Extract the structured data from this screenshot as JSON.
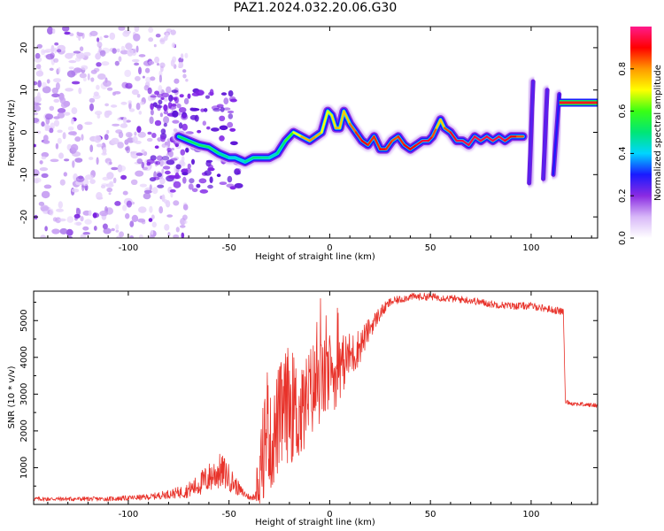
{
  "title": "PAZ1.2024.032.20.06.G30",
  "chart_data": [
    {
      "type": "heatmap",
      "name": "spectrogram",
      "xlabel": "Height of straight line (km)",
      "ylabel": "Frequency (Hz)",
      "xlim": [
        -147,
        133
      ],
      "ylim": [
        -25,
        25
      ],
      "xticks": [
        -100,
        -50,
        0,
        50,
        100
      ],
      "yticks": [
        -20,
        -10,
        0,
        10,
        20
      ],
      "colorbar": {
        "label": "Normalized spectral amplitude",
        "range": [
          0,
          1
        ],
        "ticks": [
          0.0,
          0.2,
          0.4,
          0.6,
          0.8
        ],
        "colormap": [
          "#ffffff",
          "#d8b8f8",
          "#8a2be2",
          "#1a1aff",
          "#00d5ff",
          "#00e676",
          "#39ff14",
          "#ffff00",
          "#ff9900",
          "#ff0000",
          "#ff1a8c"
        ]
      },
      "scatter_region": {
        "x": [
          -147,
          -75
        ],
        "y": [
          -25,
          25
        ],
        "amplitude": 0.1
      },
      "trace": {
        "x": [
          -75,
          -70,
          -65,
          -60,
          -55,
          -50,
          -47,
          -42,
          -38,
          -34,
          -30,
          -26,
          -22,
          -18,
          -14,
          -10,
          -7,
          -4,
          -1,
          1,
          3,
          5,
          7,
          10,
          13,
          16,
          19,
          22,
          25,
          28,
          31,
          34,
          37,
          40,
          43,
          46,
          49,
          51,
          53,
          55,
          57,
          60,
          63,
          66,
          69,
          72,
          75,
          78,
          81,
          84,
          87,
          90,
          93,
          96
        ],
        "y": [
          -1,
          -2,
          -3,
          -3.5,
          -5,
          -6,
          -6,
          -7,
          -6,
          -6,
          -6,
          -5,
          -2,
          0,
          -1,
          -2,
          -1,
          0,
          5,
          4,
          1,
          1,
          5,
          2,
          0,
          -2,
          -3,
          -1,
          -4,
          -4,
          -2,
          -1,
          -3,
          -4,
          -3,
          -2,
          -2,
          -1,
          1,
          3,
          1,
          0,
          -2,
          -2,
          -3,
          -1,
          -2,
          -1,
          -2,
          -1,
          -2,
          -1,
          -1,
          -1
        ],
        "amplitude": [
          0.5,
          0.55,
          0.5,
          0.55,
          0.5,
          0.45,
          0.4,
          0.45,
          0.5,
          0.5,
          0.45,
          0.45,
          0.55,
          0.65,
          0.75,
          0.8,
          0.8,
          0.75,
          0.65,
          0.7,
          0.75,
          0.8,
          0.7,
          0.8,
          0.85,
          0.9,
          0.9,
          0.85,
          0.9,
          0.9,
          0.85,
          0.85,
          0.9,
          0.9,
          0.9,
          0.95,
          0.95,
          0.9,
          0.8,
          0.7,
          0.8,
          0.9,
          0.95,
          0.95,
          0.95,
          0.95,
          0.95,
          0.95,
          0.95,
          0.95,
          0.95,
          0.9,
          0.9,
          0.8
        ]
      },
      "multipath_streaks": [
        {
          "x": [
            99,
            101
          ],
          "y": [
            -12,
            12
          ],
          "amplitude": 0.25
        },
        {
          "x": [
            106,
            108
          ],
          "y": [
            -11,
            10
          ],
          "amplitude": 0.25
        },
        {
          "x": [
            111,
            114
          ],
          "y": [
            -10,
            9
          ],
          "amplitude": 0.3
        }
      ],
      "final_tone": {
        "x": [
          114,
          133
        ],
        "y": [
          7,
          7
        ],
        "amplitude": 1.0
      }
    },
    {
      "type": "line",
      "name": "snr",
      "xlabel": "Height of straight line (km)",
      "ylabel": "SNR (10 * v/v)",
      "xlim": [
        -147,
        133
      ],
      "ylim": [
        0,
        5800
      ],
      "xticks": [
        -100,
        -50,
        0,
        50,
        100
      ],
      "yticks": [
        1000,
        2000,
        3000,
        4000,
        5000
      ],
      "color": "#e8322a",
      "envelope": {
        "x": [
          -147,
          -110,
          -90,
          -80,
          -72,
          -66,
          -62,
          -58,
          -55,
          -52,
          -48,
          -44,
          -40,
          -37,
          -35,
          -33,
          -31,
          -29,
          -26,
          -23,
          -20,
          -17,
          -14,
          -11,
          -8,
          -5,
          -2,
          0,
          3,
          6,
          9,
          12,
          16,
          20,
          25,
          30,
          40,
          50,
          60,
          70,
          80,
          90,
          100,
          110,
          115,
          116,
          117,
          120,
          130,
          133
        ],
        "y": [
          150,
          150,
          200,
          280,
          350,
          500,
          650,
          800,
          900,
          850,
          600,
          350,
          200,
          180,
          600,
          1500,
          2300,
          1500,
          2200,
          2500,
          2800,
          2500,
          2400,
          2900,
          3200,
          3300,
          3400,
          3500,
          3500,
          3800,
          4000,
          4100,
          4400,
          4800,
          5200,
          5500,
          5650,
          5650,
          5600,
          5550,
          5450,
          5400,
          5400,
          5300,
          5250,
          5250,
          2800,
          2750,
          2700,
          2700
        ],
        "noise_amplitude": [
          60,
          60,
          80,
          120,
          180,
          280,
          380,
          450,
          500,
          450,
          300,
          150,
          80,
          60,
          700,
          1400,
          1600,
          1200,
          1500,
          1600,
          1600,
          1500,
          1300,
          1300,
          1300,
          1200,
          1100,
          1000,
          900,
          800,
          700,
          600,
          450,
          300,
          200,
          120,
          100,
          100,
          100,
          100,
          100,
          100,
          100,
          100,
          100,
          100,
          60,
          60,
          60,
          60
        ]
      }
    }
  ]
}
